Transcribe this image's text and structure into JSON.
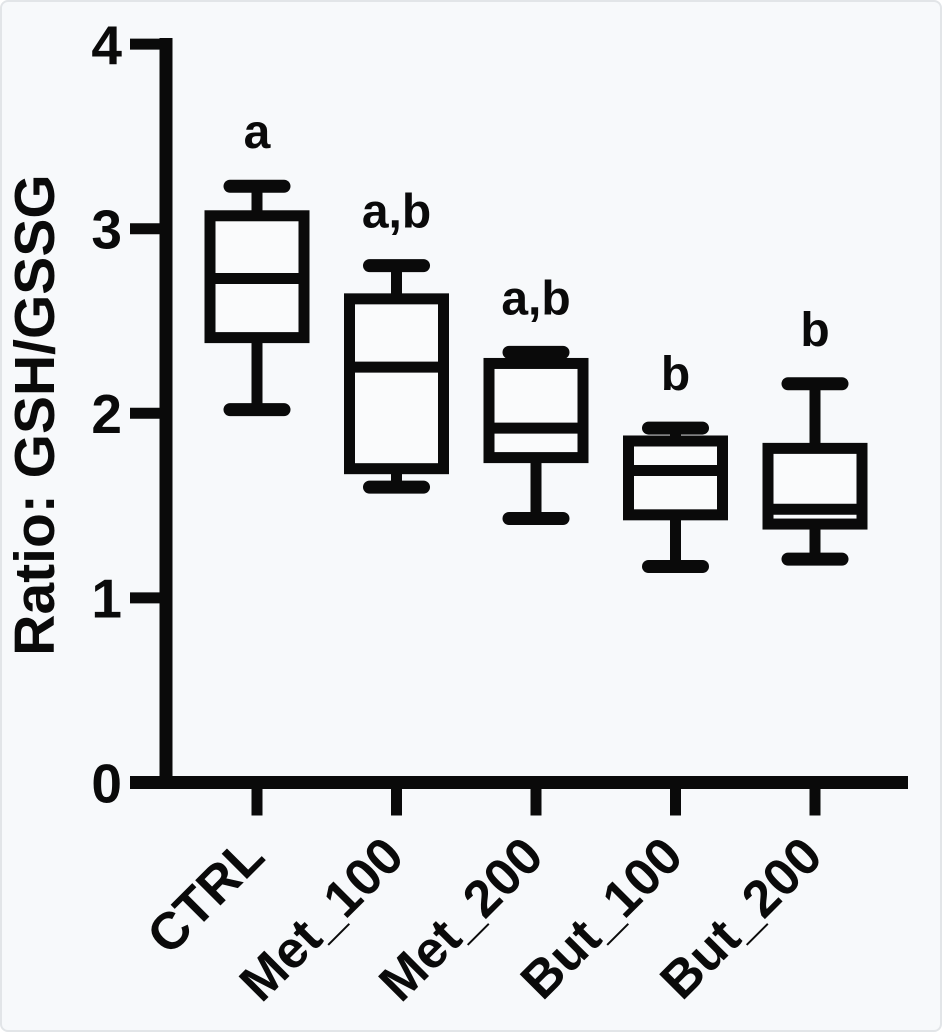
{
  "figure": {
    "background": "#f7f9fb",
    "border_color": "#e2e5e8",
    "ink_color": "#0a0a0a",
    "box_fill": "#fafbfc"
  },
  "chart_data": {
    "type": "boxplot",
    "title": "",
    "xlabel": "",
    "ylabel": "Ratio: GSH/GSSG",
    "ylim": [
      0,
      4
    ],
    "yticks": [
      0,
      1,
      2,
      3,
      4
    ],
    "grid": false,
    "legend": null,
    "x_tick_rotation_deg": -45,
    "categories": [
      "CTRL",
      "Met_100",
      "Met_200",
      "But_100",
      "But_200"
    ],
    "series": [
      {
        "category": "CTRL",
        "min": 2.02,
        "q1": 2.41,
        "median": 2.73,
        "q3": 3.07,
        "max": 3.23,
        "annotation": "a"
      },
      {
        "category": "Met_100",
        "min": 1.6,
        "q1": 1.7,
        "median": 2.25,
        "q3": 2.62,
        "max": 2.8,
        "annotation": "a,b"
      },
      {
        "category": "Met_200",
        "min": 1.43,
        "q1": 1.76,
        "median": 1.92,
        "q3": 2.27,
        "max": 2.33,
        "annotation": "a,b"
      },
      {
        "category": "But_100",
        "min": 1.17,
        "q1": 1.45,
        "median": 1.69,
        "q3": 1.85,
        "max": 1.92,
        "annotation": "b"
      },
      {
        "category": "But_200",
        "min": 1.21,
        "q1": 1.4,
        "median": 1.48,
        "q3": 1.81,
        "max": 2.16,
        "annotation": "b"
      }
    ]
  }
}
